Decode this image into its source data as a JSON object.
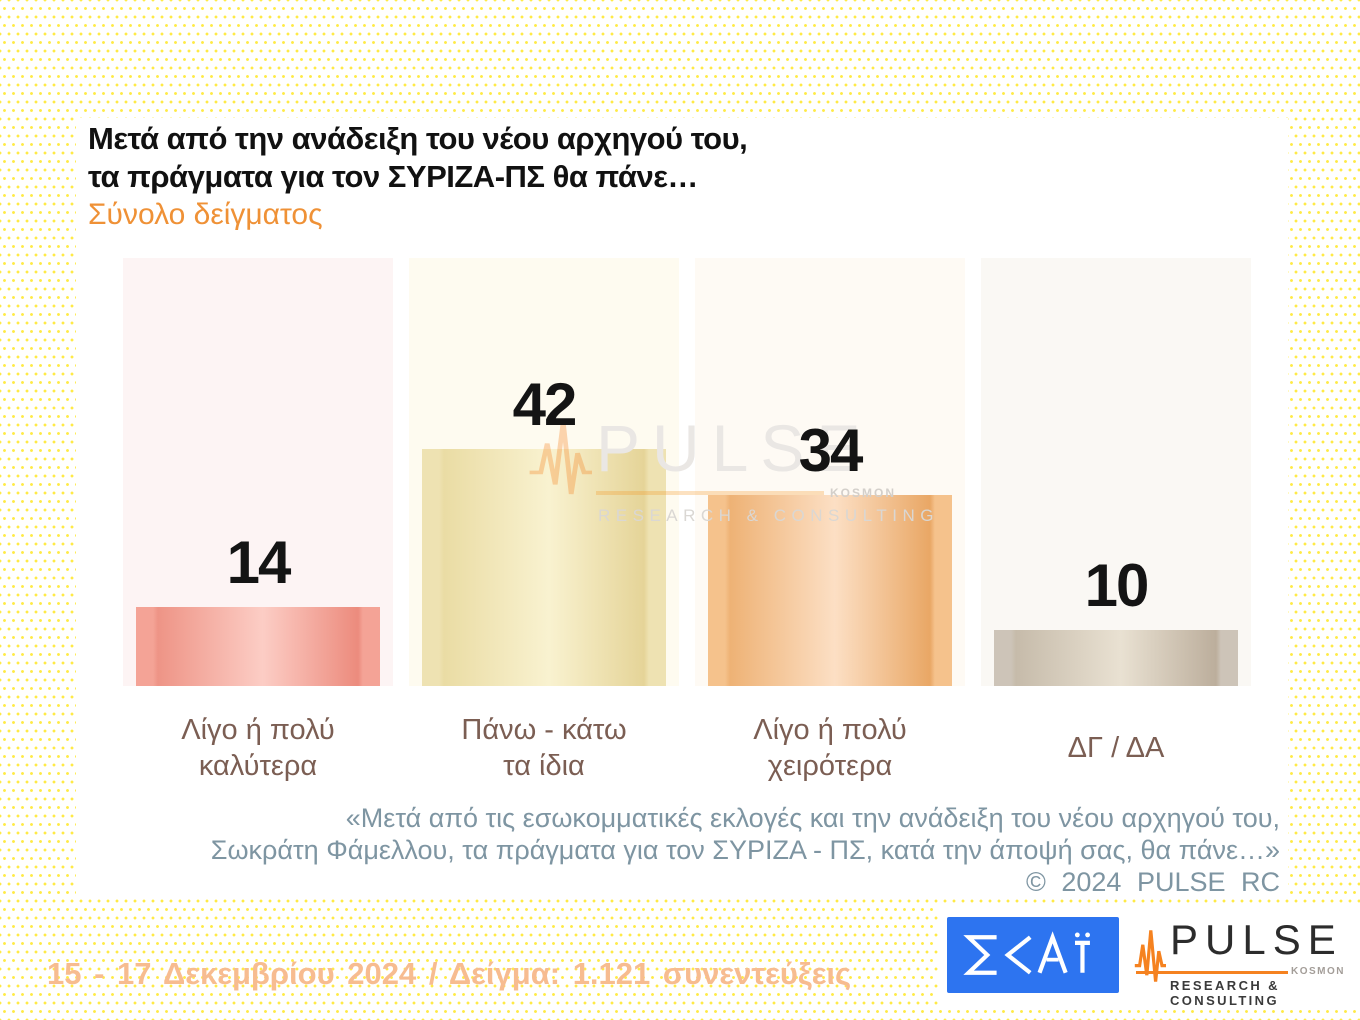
{
  "header": {
    "title": "Μετά από την ανάδειξη του νέου αρχηγού του,\nτα πράγματα για τον ΣΥΡΙΖΑ-ΠΣ θα πάνε…",
    "subtitle": "Σύνολο δείγματος"
  },
  "chart_data": {
    "type": "bar",
    "title": "Μετά από την ανάδειξη του νέου αρχηγού του, τα πράγματα για τον ΣΥΡΙΖΑ-ΠΣ θα πάνε…",
    "subtitle": "Σύνολο δείγματος",
    "categories": [
      "Λίγο ή πολύ\nκαλύτερα",
      "Πάνω - κάτω\nτα ίδια",
      "Λίγο ή πολύ\nχειρότερα",
      "ΔΓ / ΔΑ"
    ],
    "values": [
      14,
      42,
      34,
      10
    ],
    "ylim": [
      0,
      76
    ],
    "xlabel": "",
    "ylabel": "",
    "grid": false,
    "legend": false,
    "value_labels": "above-bars",
    "axes_hidden": true,
    "track_colors": [
      "#fdf4f4",
      "#fefbf0",
      "#fefaf4",
      "#faf8f4"
    ],
    "bar_colors": [
      {
        "cap": "#f4a396",
        "edge": "#ee9486",
        "light": "#fccdc5",
        "edge2": "#ec8b7d"
      },
      {
        "cap": "#eee2b2",
        "edge": "#eadca4",
        "light": "#f9f2d0",
        "edge2": "#e5d498"
      },
      {
        "cap": "#f5c28c",
        "edge": "#eeb275",
        "light": "#fcdfc4",
        "edge2": "#e9a765"
      },
      {
        "cap": "#cdc4b8",
        "edge": "#c6bbaa",
        "light": "#e9e1d2",
        "edge2": "#bcae9c"
      }
    ]
  },
  "watermark": {
    "brand": "PULSE",
    "kosmon": "KOSMON",
    "tagline": "RESEARCH & CONSULTING"
  },
  "footnote": {
    "line1": "«Μετά από τις εσωκομματικές εκλογές και την ανάδειξη του νέου αρχηγού του,",
    "line2": "Σωκράτη Φάμελλου, τα πράγματα για τον ΣΥΡΙΖΑ - ΠΣ, κατά την άποψή σας, θα πάνε…»",
    "copyright": "© 2024 PULSE RC"
  },
  "footer": {
    "fieldwork": "15 - 17 Δεκεμβρίου 2024 / Δείγμα: 1.121 συνεντεύξεις",
    "skai_logo_text": "ΣΚΑΪ",
    "pulse_logo": {
      "brand": "PULSE",
      "kosmon": "KOSMON",
      "tagline": "RESEARCH & CONSULTING"
    }
  },
  "colors": {
    "dot_pattern": "#ffe93c",
    "card_bg": "#ffffff",
    "title": "#111111",
    "subtitle": "#ef9136",
    "category_label": "#7b5e53",
    "value_label": "#141414",
    "footnote": "#7e95a2",
    "fieldwork": "#f7bc90",
    "skai_blue": "#2d74f0",
    "pulse_orange": "#f58220",
    "pulse_dark": "#2c2c2c"
  }
}
